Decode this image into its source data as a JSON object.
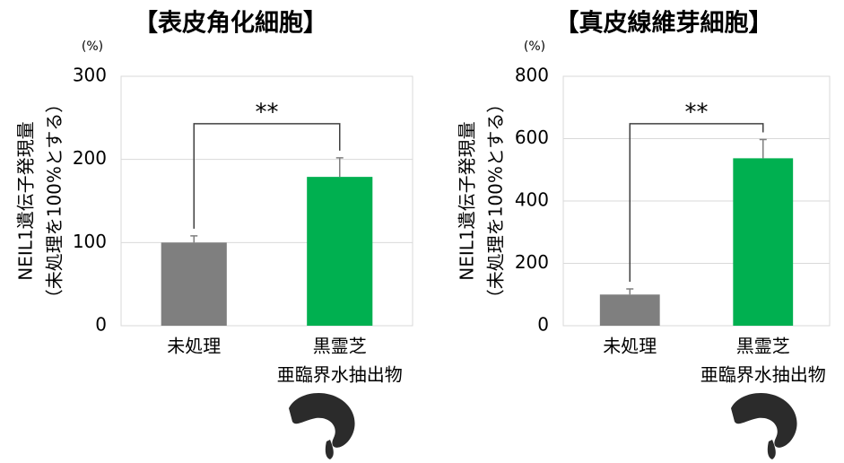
{
  "chart_data": [
    {
      "type": "bar",
      "title": "【表皮角化細胞】",
      "unit": "(%)",
      "y_label": [
        "NEIL1遺伝子発現量",
        "（未処理を100%とする）"
      ],
      "categories": [
        [
          "未処理"
        ],
        [
          "黒霊芝",
          "亜臨界水抽出物"
        ]
      ],
      "values": [
        100,
        179
      ],
      "errors": [
        8,
        23
      ],
      "colors": [
        "#7f7f7f",
        "#00b050"
      ],
      "ylim": [
        0,
        300
      ],
      "yticks": [
        0,
        100,
        200,
        300
      ],
      "grid": true,
      "significance": "**"
    },
    {
      "type": "bar",
      "title": "【真皮線維芽細胞】",
      "unit": "(%)",
      "y_label": [
        "NEIL1遺伝子発現量",
        "（未処理を100%とする）"
      ],
      "categories": [
        [
          "未処理"
        ],
        [
          "黒霊芝",
          "亜臨界水抽出物"
        ]
      ],
      "values": [
        100,
        537
      ],
      "errors": [
        18,
        60
      ],
      "colors": [
        "#7f7f7f",
        "#00b050"
      ],
      "ylim": [
        0,
        800
      ],
      "yticks": [
        0,
        200,
        400,
        600,
        800
      ],
      "grid": true,
      "significance": "**"
    }
  ]
}
